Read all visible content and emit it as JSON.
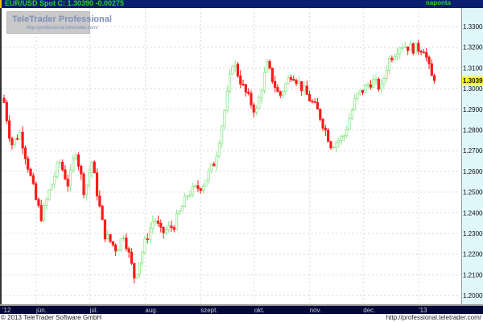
{
  "header": {
    "title": "EUR/USD Spot C: 1.30390 -0.00275",
    "period": "naponta"
  },
  "logo": {
    "name": "TeleTrader Professional",
    "url": "http://professional.teletrader.com/"
  },
  "footer": {
    "copyright": "© 2013 TeleTrader Software GmbH",
    "url": "http://professional.teletrader.com/"
  },
  "colors": {
    "up": "#8ee88e",
    "down": "#ff1a1a",
    "header_bg": "#0a1f6e",
    "axis_bg": "#03073a",
    "last_price_bg": "#ffff00"
  },
  "chart_data": {
    "type": "candlestick",
    "title": "EUR/USD Spot",
    "last_price": 1.3039,
    "change": -0.00275,
    "ylim": [
      1.195,
      1.335
    ],
    "yticks": [
      1.33,
      1.32,
      1.31,
      1.3,
      1.29,
      1.28,
      1.27,
      1.26,
      1.25,
      1.24,
      1.23,
      1.22,
      1.21,
      1.2
    ],
    "ytick_labels": [
      "1.33000",
      "1.32000",
      "1.31000",
      "1.30000",
      "1.29000",
      "1.28000",
      "1.27000",
      "1.26000",
      "1.25000",
      "1.24000",
      "1.23000",
      "1.22000",
      "1.21000",
      "1.20000"
    ],
    "xticks": [
      {
        "date": "2012-05-01",
        "label": "'12"
      },
      {
        "date": "2012-06-01",
        "label": "jún."
      },
      {
        "date": "2012-07-01",
        "label": "júl."
      },
      {
        "date": "2012-08-01",
        "label": "aug."
      },
      {
        "date": "2012-09-01",
        "label": "szept."
      },
      {
        "date": "2012-10-01",
        "label": "okt."
      },
      {
        "date": "2012-11-01",
        "label": "nov."
      },
      {
        "date": "2012-12-01",
        "label": "dec."
      },
      {
        "date": "2013-01-01",
        "label": "'13"
      }
    ],
    "grid": true,
    "close_path": [
      [
        "2012-05-14",
        1.2934
      ],
      [
        "2012-05-18",
        1.2728
      ],
      [
        "2012-05-23",
        1.2787
      ],
      [
        "2012-06-01",
        1.2456
      ],
      [
        "2012-06-04",
        1.2378
      ],
      [
        "2012-06-08",
        1.2495
      ],
      [
        "2012-06-14",
        1.265
      ],
      [
        "2012-06-19",
        1.2533
      ],
      [
        "2012-06-23",
        1.2709
      ],
      [
        "2012-06-28",
        1.2495
      ],
      [
        "2012-07-02",
        1.265
      ],
      [
        "2012-07-09",
        1.23
      ],
      [
        "2012-07-16",
        1.2222
      ],
      [
        "2012-07-20",
        1.23
      ],
      [
        "2012-07-26",
        1.2086
      ],
      [
        "2012-08-01",
        1.226
      ],
      [
        "2012-08-06",
        1.2378
      ],
      [
        "2012-08-10",
        1.23
      ],
      [
        "2012-08-17",
        1.2339
      ],
      [
        "2012-08-25",
        1.2495
      ],
      [
        "2012-09-02",
        1.2533
      ],
      [
        "2012-09-09",
        1.265
      ],
      [
        "2012-09-15",
        1.2922
      ],
      [
        "2012-09-19",
        1.3137
      ],
      [
        "2012-09-25",
        1.3
      ],
      [
        "2012-10-02",
        1.2884
      ],
      [
        "2012-10-08",
        1.3117
      ],
      [
        "2012-10-15",
        1.296
      ],
      [
        "2012-10-22",
        1.3078
      ],
      [
        "2012-10-28",
        1.3
      ],
      [
        "2012-11-06",
        1.2884
      ],
      [
        "2012-11-13",
        1.2728
      ],
      [
        "2012-11-20",
        1.2767
      ],
      [
        "2012-11-27",
        1.296
      ],
      [
        "2012-12-06",
        1.3039
      ],
      [
        "2012-12-11",
        1.3
      ],
      [
        "2012-12-15",
        1.3137
      ],
      [
        "2012-12-22",
        1.3214
      ],
      [
        "2012-12-29",
        1.3195
      ],
      [
        "2013-01-04",
        1.3195
      ],
      [
        "2013-01-08",
        1.3058
      ],
      [
        "2013-01-10",
        1.3039
      ]
    ]
  }
}
